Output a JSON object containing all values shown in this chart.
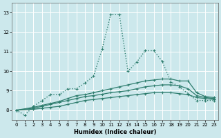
{
  "xlabel": "Humidex (Indice chaleur)",
  "bg_color": "#cce8ec",
  "grid_color": "#b8d8dc",
  "line_color": "#2e7d6e",
  "xlim": [
    -0.5,
    23.5
  ],
  "ylim": [
    7.5,
    13.5
  ],
  "yticks": [
    8,
    9,
    10,
    11,
    12,
    13
  ],
  "xticks": [
    0,
    1,
    2,
    3,
    4,
    5,
    6,
    7,
    8,
    9,
    10,
    11,
    12,
    13,
    14,
    15,
    16,
    17,
    18,
    19,
    20,
    21,
    22,
    23
  ],
  "series": [
    {
      "x": [
        0,
        1,
        2,
        3,
        4,
        5,
        6,
        7,
        8,
        9,
        10,
        11,
        12,
        13,
        14,
        15,
        16,
        17,
        18,
        19,
        20,
        21,
        22,
        23
      ],
      "y": [
        8.0,
        7.75,
        8.2,
        8.5,
        8.8,
        8.8,
        9.1,
        9.1,
        9.4,
        9.75,
        11.15,
        12.9,
        12.9,
        10.0,
        10.45,
        11.05,
        11.05,
        10.5,
        9.45,
        9.2,
        8.85,
        8.5,
        8.5,
        8.5
      ],
      "linestyle": ":",
      "linewidth": 1.0,
      "marker": "+"
    },
    {
      "x": [
        0,
        2,
        3,
        4,
        5,
        6,
        7,
        8,
        9,
        10,
        11,
        12,
        13,
        14,
        15,
        16,
        17,
        18,
        19,
        20,
        21,
        22,
        23
      ],
      "y": [
        8.0,
        8.15,
        8.25,
        8.35,
        8.45,
        8.6,
        8.75,
        8.8,
        8.9,
        9.0,
        9.1,
        9.2,
        9.3,
        9.4,
        9.5,
        9.55,
        9.6,
        9.6,
        9.5,
        9.5,
        8.9,
        8.7,
        8.65
      ],
      "linestyle": "-",
      "linewidth": 0.9,
      "marker": "+"
    },
    {
      "x": [
        0,
        2,
        3,
        4,
        5,
        6,
        7,
        8,
        9,
        10,
        11,
        12,
        13,
        14,
        15,
        16,
        17,
        18,
        19,
        20,
        21,
        22,
        23
      ],
      "y": [
        8.0,
        8.1,
        8.2,
        8.3,
        8.4,
        8.5,
        8.6,
        8.7,
        8.75,
        8.82,
        8.9,
        8.95,
        9.0,
        9.1,
        9.2,
        9.25,
        9.3,
        9.3,
        9.25,
        9.1,
        8.75,
        8.65,
        8.6
      ],
      "linestyle": "-",
      "linewidth": 0.9,
      "marker": "+"
    },
    {
      "x": [
        0,
        2,
        3,
        4,
        5,
        6,
        7,
        8,
        9,
        10,
        11,
        12,
        13,
        14,
        15,
        16,
        17,
        18,
        19,
        20,
        21,
        22,
        23
      ],
      "y": [
        8.0,
        8.05,
        8.1,
        8.15,
        8.2,
        8.3,
        8.4,
        8.5,
        8.55,
        8.6,
        8.65,
        8.7,
        8.75,
        8.8,
        8.85,
        8.9,
        8.9,
        8.9,
        8.85,
        8.8,
        8.65,
        8.6,
        8.55
      ],
      "linestyle": "-",
      "linewidth": 0.9,
      "marker": "+"
    }
  ]
}
